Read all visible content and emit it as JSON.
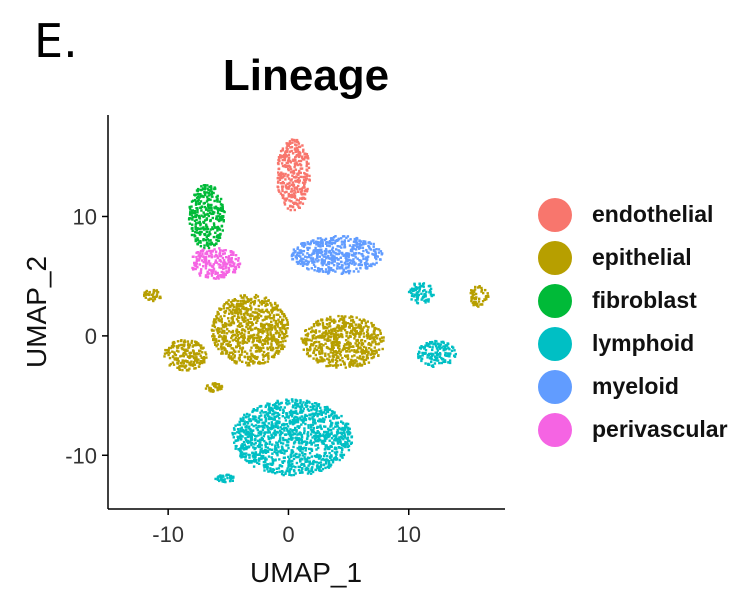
{
  "panel_letter": "E.",
  "chart_data": {
    "type": "scatter",
    "title": "Lineage",
    "xlabel": "UMAP_1",
    "ylabel": "UMAP_2",
    "xlim": [
      -15,
      18
    ],
    "ylim": [
      -14.5,
      18.5
    ],
    "xticks": [
      -10,
      0,
      10
    ],
    "yticks": [
      -10,
      0,
      10
    ],
    "grid": false,
    "legend_position": "right",
    "series": [
      {
        "name": "endothelial",
        "color": "#F8766D",
        "clusters": [
          {
            "cx": 0.4,
            "cy": 13.5,
            "rx": 1.4,
            "ry": 3.0
          }
        ]
      },
      {
        "name": "epithelial",
        "color": "#B79F00",
        "clusters": [
          {
            "cx": -3.2,
            "cy": 0.5,
            "rx": 3.2,
            "ry": 3.0
          },
          {
            "cx": -8.6,
            "cy": -1.6,
            "rx": 1.8,
            "ry": 1.3
          },
          {
            "cx": 4.5,
            "cy": -0.5,
            "rx": 3.5,
            "ry": 2.2
          },
          {
            "cx": -11.3,
            "cy": 3.4,
            "rx": 0.8,
            "ry": 0.5
          },
          {
            "cx": 15.8,
            "cy": 3.3,
            "rx": 0.8,
            "ry": 0.9
          },
          {
            "cx": -6.2,
            "cy": -4.3,
            "rx": 0.7,
            "ry": 0.4
          }
        ]
      },
      {
        "name": "fibroblast",
        "color": "#00BA38",
        "clusters": [
          {
            "cx": -6.8,
            "cy": 10.0,
            "rx": 1.5,
            "ry": 2.7
          }
        ]
      },
      {
        "name": "lymphoid",
        "color": "#00BFC4",
        "clusters": [
          {
            "cx": 0.3,
            "cy": -8.5,
            "rx": 5.0,
            "ry": 3.2
          },
          {
            "cx": 12.3,
            "cy": -1.5,
            "rx": 1.6,
            "ry": 1.1
          },
          {
            "cx": 11.0,
            "cy": 3.6,
            "rx": 1.1,
            "ry": 0.9
          },
          {
            "cx": -5.3,
            "cy": -11.9,
            "rx": 0.8,
            "ry": 0.4
          }
        ]
      },
      {
        "name": "myeloid",
        "color": "#619CFF",
        "clusters": [
          {
            "cx": 4.0,
            "cy": 6.8,
            "rx": 3.8,
            "ry": 1.6
          }
        ]
      },
      {
        "name": "perivascular",
        "color": "#F564E3",
        "clusters": [
          {
            "cx": -6.1,
            "cy": 6.1,
            "rx": 2.1,
            "ry": 1.3
          }
        ]
      }
    ]
  }
}
